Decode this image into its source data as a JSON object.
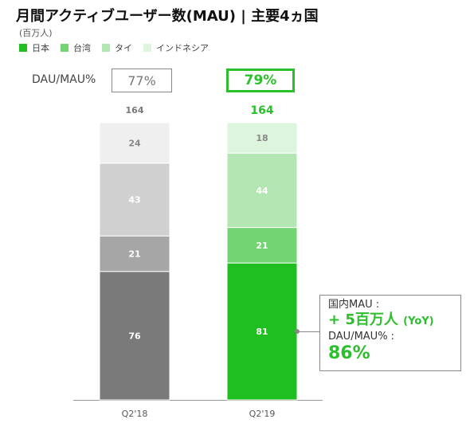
{
  "header": {
    "title": "月間アクティブユーザー数(MAU) | 主要4ヵ国",
    "unit": "(百万人)"
  },
  "legend": [
    {
      "label": "日本",
      "color": "#1fbf1f"
    },
    {
      "label": "台湾",
      "color": "#72d472"
    },
    {
      "label": "タイ",
      "color": "#b3e6b3"
    },
    {
      "label": "インドネシア",
      "color": "#dcf5dc"
    }
  ],
  "dau": {
    "label": "DAU/MAU%",
    "q2_18": "77%",
    "q2_19": "79%"
  },
  "callout": {
    "line1": "国内MAU :",
    "line2": "+ 5百万人",
    "line2_suffix": "(YoY)",
    "line3": "DAU/MAU% :",
    "line4": "86%"
  },
  "chart_data": {
    "type": "bar",
    "stacked": true,
    "categories": [
      "Q2'18",
      "Q2'19"
    ],
    "totals": [
      "164",
      "164"
    ],
    "ylim": [
      0,
      164
    ],
    "series": [
      {
        "name": "日本",
        "values": [
          76,
          81
        ],
        "colors": [
          "#7a7a7a",
          "#1fbf1f"
        ],
        "label_colors": [
          "#ffffff",
          "#ffffff"
        ]
      },
      {
        "name": "台湾",
        "values": [
          21,
          21
        ],
        "colors": [
          "#a6a6a6",
          "#72d472"
        ],
        "label_colors": [
          "#ffffff",
          "#ffffff"
        ]
      },
      {
        "name": "タイ",
        "values": [
          43,
          44
        ],
        "colors": [
          "#d0d0d0",
          "#b3e6b3"
        ],
        "label_colors": [
          "#ffffff",
          "#ffffff"
        ]
      },
      {
        "name": "インドネシア",
        "values": [
          24,
          18
        ],
        "colors": [
          "#efefef",
          "#dcf5dc"
        ],
        "label_colors": [
          "#888888",
          "#888888"
        ]
      }
    ],
    "total_colors": [
      "#777777",
      "#2cbf2c"
    ]
  }
}
